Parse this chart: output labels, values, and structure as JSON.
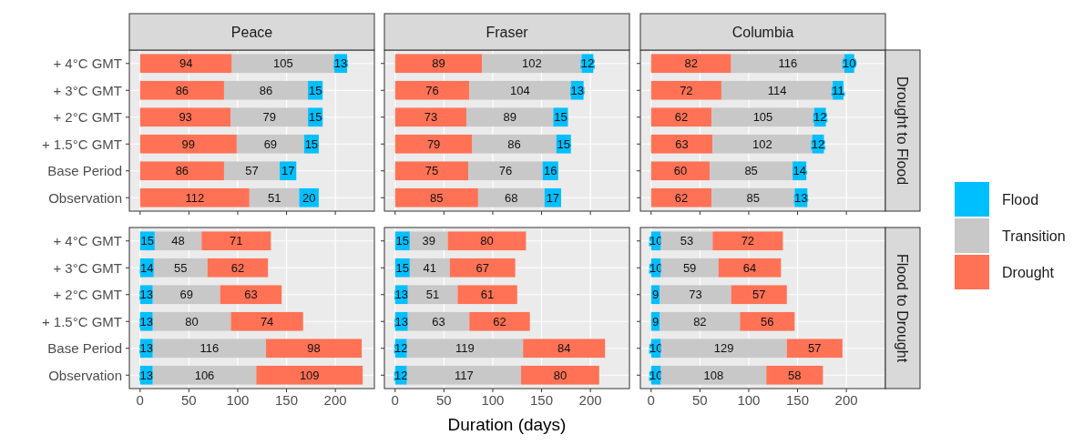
{
  "chart_data": [
    {
      "type": "bar",
      "orientation": "horizontal",
      "stacked": true,
      "title": "Peace",
      "legend": "right",
      "categories": [
        "+ 4°C GMT",
        "+ 3°C GMT",
        "+ 2°C GMT",
        "+ 1.5°C GMT",
        "Base Period",
        "Observation"
      ],
      "xlim": [
        -11,
        240
      ],
      "xticks": [
        0,
        50,
        100,
        150,
        200
      ],
      "grid": true,
      "tick_labels": "y",
      "data_labels": true,
      "series": [
        {
          "name": "Drought",
          "color": "#ff7256",
          "values": [
            94,
            86,
            93,
            99,
            86,
            112
          ]
        },
        {
          "name": "Transition",
          "color": "#c8c8c8",
          "values": [
            105,
            86,
            79,
            69,
            57,
            51
          ]
        },
        {
          "name": "Flood",
          "color": "#00bfff",
          "values": [
            13,
            15,
            15,
            15,
            17,
            20
          ]
        }
      ]
    },
    {
      "type": "bar",
      "orientation": "horizontal",
      "stacked": true,
      "title": "Fraser",
      "legend": "right",
      "categories": [
        "+ 4°C GMT",
        "+ 3°C GMT",
        "+ 2°C GMT",
        "+ 1.5°C GMT",
        "Base Period",
        "Observation"
      ],
      "xlim": [
        -11,
        240
      ],
      "xticks": [
        0,
        50,
        100,
        150,
        200
      ],
      "grid": true,
      "tick_labels": false,
      "data_labels": true,
      "series": [
        {
          "name": "Drought",
          "color": "#ff7256",
          "values": [
            89,
            76,
            73,
            79,
            75,
            85
          ]
        },
        {
          "name": "Transition",
          "color": "#c8c8c8",
          "values": [
            102,
            104,
            89,
            86,
            76,
            68
          ]
        },
        {
          "name": "Flood",
          "color": "#00bfff",
          "values": [
            12,
            13,
            15,
            15,
            16,
            17
          ]
        }
      ]
    },
    {
      "type": "bar",
      "orientation": "horizontal",
      "stacked": true,
      "title": "Columbia",
      "y2label": "Drought to Flood",
      "legend": "right",
      "categories": [
        "+ 4°C GMT",
        "+ 3°C GMT",
        "+ 2°C GMT",
        "+ 1.5°C GMT",
        "Base Period",
        "Observation"
      ],
      "xlim": [
        -11,
        240
      ],
      "xticks": [
        0,
        50,
        100,
        150,
        200
      ],
      "grid": true,
      "tick_labels": false,
      "data_labels": true,
      "series": [
        {
          "name": "Drought",
          "color": "#ff7256",
          "values": [
            82,
            72,
            62,
            63,
            60,
            62
          ]
        },
        {
          "name": "Transition",
          "color": "#c8c8c8",
          "values": [
            116,
            114,
            105,
            102,
            85,
            85
          ]
        },
        {
          "name": "Flood",
          "color": "#00bfff",
          "values": [
            10,
            11,
            12,
            12,
            14,
            13
          ]
        }
      ]
    },
    {
      "type": "bar",
      "orientation": "horizontal",
      "stacked": true,
      "categories": [
        "+ 4°C GMT",
        "+ 3°C GMT",
        "+ 2°C GMT",
        "+ 1.5°C GMT",
        "Base Period",
        "Observation"
      ],
      "xlim": [
        -11,
        240
      ],
      "xticks": [
        0,
        50,
        100,
        150,
        200
      ],
      "grid": true,
      "data_labels": true,
      "legend": "right",
      "series": [
        {
          "name": "Flood",
          "color": "#00bfff",
          "values": [
            15,
            14,
            13,
            13,
            13,
            13
          ]
        },
        {
          "name": "Transition",
          "color": "#c8c8c8",
          "values": [
            48,
            55,
            69,
            80,
            116,
            106
          ]
        },
        {
          "name": "Drought",
          "color": "#ff7256",
          "values": [
            71,
            62,
            63,
            74,
            98,
            109
          ]
        }
      ]
    },
    {
      "type": "bar",
      "orientation": "horizontal",
      "stacked": true,
      "xlabel": "Duration (days)",
      "categories": [
        "+ 4°C GMT",
        "+ 3°C GMT",
        "+ 2°C GMT",
        "+ 1.5°C GMT",
        "Base Period",
        "Observation"
      ],
      "xlim": [
        -11,
        240
      ],
      "xticks": [
        0,
        50,
        100,
        150,
        200
      ],
      "grid": true,
      "tick_labels": "x",
      "data_labels": true,
      "legend": "right",
      "series": [
        {
          "name": "Flood",
          "color": "#00bfff",
          "values": [
            15,
            15,
            13,
            13,
            12,
            12
          ]
        },
        {
          "name": "Transition",
          "color": "#c8c8c8",
          "values": [
            39,
            41,
            51,
            63,
            119,
            117
          ]
        },
        {
          "name": "Drought",
          "color": "#ff7256",
          "values": [
            80,
            67,
            61,
            62,
            84,
            80
          ]
        }
      ]
    },
    {
      "type": "bar",
      "orientation": "horizontal",
      "stacked": true,
      "y2label": "Flood to Drought",
      "categories": [
        "+ 4°C GMT",
        "+ 3°C GMT",
        "+ 2°C GMT",
        "+ 1.5°C GMT",
        "Base Period",
        "Observation"
      ],
      "xlim": [
        -11,
        240
      ],
      "xticks": [
        0,
        50,
        100,
        150,
        200
      ],
      "grid": true,
      "tick_labels": "x",
      "data_labels": true,
      "legend": "right",
      "series": [
        {
          "name": "Flood",
          "color": "#00bfff",
          "values": [
            10,
            10,
            9,
            9,
            10,
            10
          ]
        },
        {
          "name": "Transition",
          "color": "#c8c8c8",
          "values": [
            53,
            59,
            73,
            82,
            129,
            108
          ]
        },
        {
          "name": "Drought",
          "color": "#ff7256",
          "values": [
            72,
            64,
            57,
            56,
            57,
            58
          ]
        }
      ]
    }
  ]
}
